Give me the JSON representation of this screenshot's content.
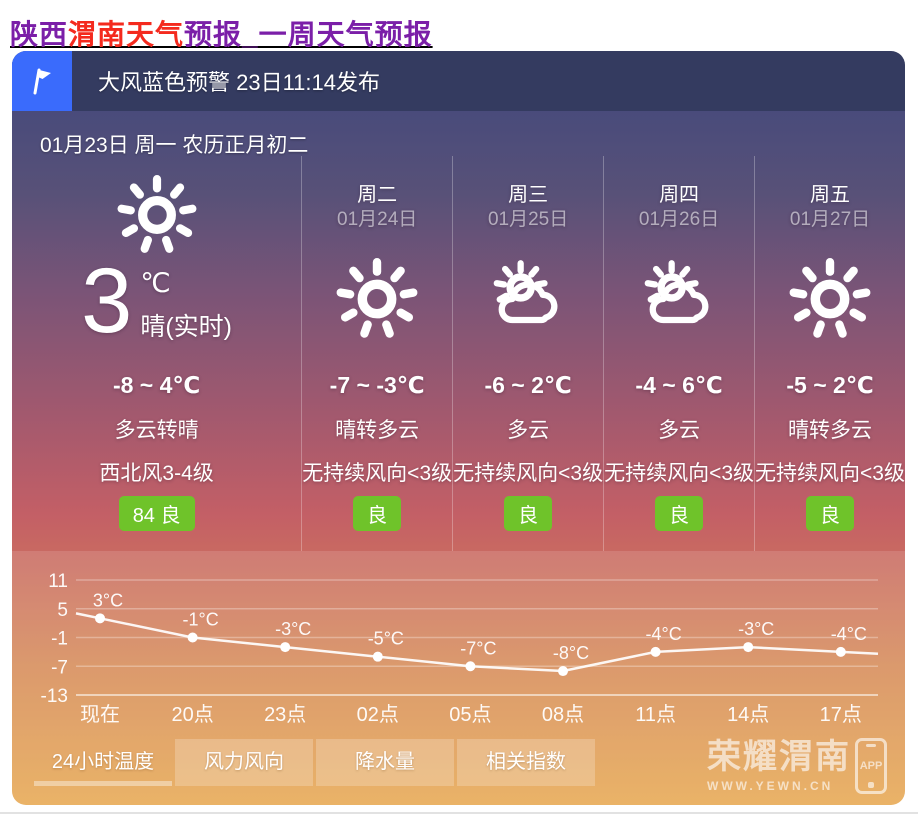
{
  "page_title": {
    "prefix": "陕西",
    "highlight": "渭南天气",
    "suffix": "预报_一周天气预报"
  },
  "alert": {
    "text": "大风蓝色预警 23日11:14发布"
  },
  "today": {
    "date_line": "01月23日 周一 农历正月初二",
    "icon": "sun",
    "temp_now": "3",
    "temp_unit": "℃",
    "condition_now": "晴(实时)",
    "range": "-8 ~ 4℃",
    "condition": "多云转晴",
    "wind": "西北风3-4级",
    "aqi": "84 良"
  },
  "days": [
    {
      "name": "周二",
      "date": "01月24日",
      "icon": "sun",
      "range": "-7 ~ -3℃",
      "condition": "晴转多云",
      "wind": "无持续风向<3级",
      "aqi": "良"
    },
    {
      "name": "周三",
      "date": "01月25日",
      "icon": "partly",
      "range": "-6 ~ 2℃",
      "condition": "多云",
      "wind": "无持续风向<3级",
      "aqi": "良"
    },
    {
      "name": "周四",
      "date": "01月26日",
      "icon": "partly",
      "range": "-4 ~ 6℃",
      "condition": "多云",
      "wind": "无持续风向<3级",
      "aqi": "良"
    },
    {
      "name": "周五",
      "date": "01月27日",
      "icon": "sun",
      "range": "-5 ~ 2℃",
      "condition": "晴转多云",
      "wind": "无持续风向<3级",
      "aqi": "良"
    }
  ],
  "chart_data": {
    "type": "line",
    "title": "24小时温度",
    "x": [
      "现在",
      "20点",
      "23点",
      "02点",
      "05点",
      "08点",
      "11点",
      "14点",
      "17点"
    ],
    "values": [
      3,
      -1,
      -3,
      -5,
      -7,
      -8,
      -4,
      -3,
      -4
    ],
    "point_labels": [
      "3°C",
      "-1°C",
      "-3°C",
      "-5°C",
      "-7°C",
      "-8°C",
      "-4°C",
      "-3°C",
      "-4°C"
    ],
    "yticks": [
      11,
      5,
      -1,
      -7,
      -13
    ],
    "ylim": [
      -13,
      17
    ],
    "grid": true,
    "legend": "none",
    "line_color": "#ffffff"
  },
  "tabs": [
    {
      "label": "24小时温度",
      "active": true
    },
    {
      "label": "风力风向",
      "active": false
    },
    {
      "label": "降水量",
      "active": false
    },
    {
      "label": "相关指数",
      "active": false
    }
  ],
  "watermark": {
    "brand": "荣耀渭南",
    "url": "WWW.YEWN.CN",
    "app_label": "APP"
  },
  "colors": {
    "aqi_good": "#6fc32a",
    "alert_blue": "#3a6bfc",
    "banner_navy": "#343b60",
    "link_purple": "#7b1fa8",
    "link_red": "#f42a1e"
  }
}
